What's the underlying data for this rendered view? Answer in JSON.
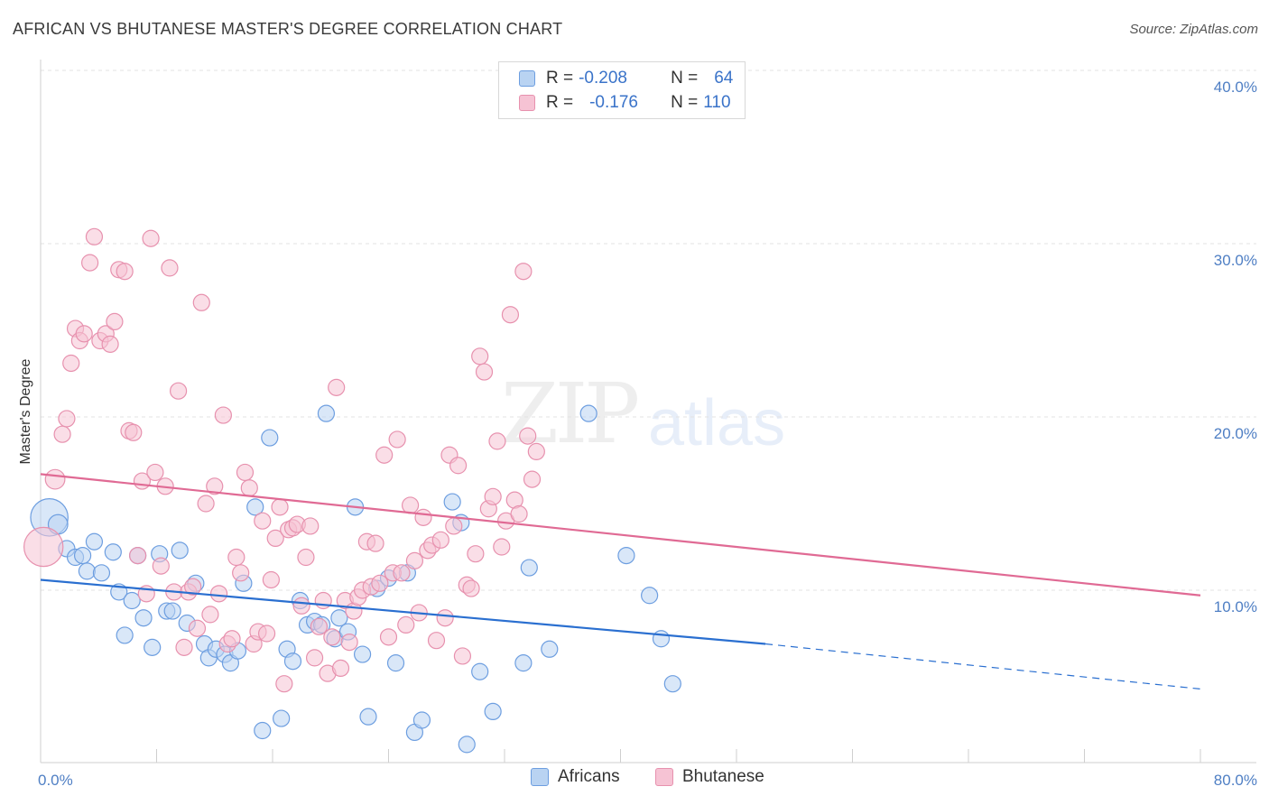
{
  "title": "AFRICAN VS BHUTANESE MASTER'S DEGREE CORRELATION CHART",
  "source": "Source: ZipAtlas.com",
  "watermark": {
    "zip": "ZIP",
    "atlas": "atlas"
  },
  "legend": {
    "rows": [
      {
        "r_label": "R =",
        "r_value": "-0.208",
        "n_label": "N =",
        "n_value": "64"
      },
      {
        "r_label": "R =",
        "r_value": "-0.176",
        "n_label": "N =",
        "n_value": "110"
      }
    ]
  },
  "colors": {
    "africans_fill": "#b9d3f2",
    "africans_stroke": "#6d9ee0",
    "africans_line": "#2a6fd0",
    "bhutanese_fill": "#f6c3d4",
    "bhutanese_stroke": "#e791ae",
    "bhutanese_line": "#e06a94",
    "grid": "#e3e3e3",
    "tick_text": "#4f7fc4"
  },
  "chart_data": {
    "type": "scatter",
    "title": "AFRICAN VS BHUTANESE MASTER'S DEGREE CORRELATION CHART",
    "xlabel": "",
    "ylabel": "Master's Degree",
    "xlim": [
      0,
      80
    ],
    "ylim": [
      0,
      40
    ],
    "x_tick_labels": [
      "0.0%",
      "80.0%"
    ],
    "y_ticks": [
      10,
      20,
      30,
      40
    ],
    "y_tick_labels": [
      "10.0%",
      "20.0%",
      "30.0%",
      "40.0%"
    ],
    "grid": true,
    "legend_position": "top-center",
    "series": [
      {
        "name": "Africans",
        "r": -0.208,
        "n": 64,
        "trend": {
          "x0": 0,
          "y0": 10.6,
          "x1": 50,
          "y1": 6.9,
          "dashed_to_x": 80,
          "dashed_to_y": 4.3
        },
        "points": [
          [
            0.6,
            14.2,
            2.3
          ],
          [
            1.2,
            13.8,
            1.2
          ],
          [
            1.8,
            12.4,
            1
          ],
          [
            2.4,
            11.9,
            1
          ],
          [
            2.9,
            12.0,
            1
          ],
          [
            3.2,
            11.1,
            1
          ],
          [
            3.7,
            12.8,
            1
          ],
          [
            4.2,
            11.0,
            1
          ],
          [
            5.0,
            12.2,
            1
          ],
          [
            5.4,
            9.9,
            1
          ],
          [
            5.8,
            7.4,
            1
          ],
          [
            6.3,
            9.4,
            1
          ],
          [
            6.7,
            12.0,
            1
          ],
          [
            7.1,
            8.4,
            1
          ],
          [
            7.7,
            6.7,
            1
          ],
          [
            8.2,
            12.1,
            1
          ],
          [
            8.7,
            8.8,
            1
          ],
          [
            9.1,
            8.8,
            1
          ],
          [
            9.6,
            12.3,
            1
          ],
          [
            10.1,
            8.1,
            1
          ],
          [
            10.7,
            10.4,
            1
          ],
          [
            11.3,
            6.9,
            1
          ],
          [
            11.6,
            6.1,
            1
          ],
          [
            12.1,
            6.6,
            1
          ],
          [
            12.7,
            6.3,
            1
          ],
          [
            13.1,
            5.8,
            1
          ],
          [
            13.6,
            6.5,
            1
          ],
          [
            14.0,
            10.4,
            1
          ],
          [
            14.8,
            14.8,
            1
          ],
          [
            15.3,
            1.9,
            1
          ],
          [
            15.8,
            18.8,
            1
          ],
          [
            16.6,
            2.6,
            1
          ],
          [
            17.0,
            6.6,
            1
          ],
          [
            17.4,
            5.9,
            1
          ],
          [
            17.9,
            9.4,
            1
          ],
          [
            18.4,
            8.0,
            1
          ],
          [
            18.9,
            8.2,
            1
          ],
          [
            19.4,
            8.0,
            1
          ],
          [
            19.7,
            20.2,
            1
          ],
          [
            20.3,
            7.2,
            1
          ],
          [
            20.6,
            8.4,
            1
          ],
          [
            21.2,
            7.6,
            1
          ],
          [
            21.7,
            14.8,
            1
          ],
          [
            22.2,
            6.3,
            1
          ],
          [
            22.6,
            2.7,
            1
          ],
          [
            23.2,
            10.1,
            1
          ],
          [
            24.0,
            10.7,
            1
          ],
          [
            24.5,
            5.8,
            1
          ],
          [
            25.3,
            11.0,
            1
          ],
          [
            25.8,
            1.8,
            1
          ],
          [
            26.3,
            2.5,
            1
          ],
          [
            28.4,
            15.1,
            1
          ],
          [
            29.0,
            13.9,
            1
          ],
          [
            29.4,
            1.1,
            1
          ],
          [
            30.3,
            5.3,
            1
          ],
          [
            31.2,
            3.0,
            1
          ],
          [
            33.3,
            5.8,
            1
          ],
          [
            33.7,
            11.3,
            1
          ],
          [
            35.1,
            6.6,
            1
          ],
          [
            37.8,
            20.2,
            1
          ],
          [
            40.4,
            12.0,
            1
          ],
          [
            42.0,
            9.7,
            1
          ],
          [
            42.8,
            7.2,
            1
          ],
          [
            43.6,
            4.6,
            1
          ]
        ]
      },
      {
        "name": "Bhutanese",
        "r": -0.176,
        "n": 110,
        "trend": {
          "x0": 0,
          "y0": 16.7,
          "x1": 80,
          "y1": 9.7
        },
        "points": [
          [
            0.2,
            12.5,
            2.4
          ],
          [
            1.0,
            16.4,
            1.2
          ],
          [
            1.5,
            19.0,
            1
          ],
          [
            1.8,
            19.9,
            1
          ],
          [
            2.1,
            23.1,
            1
          ],
          [
            2.4,
            25.1,
            1
          ],
          [
            2.7,
            24.4,
            1
          ],
          [
            3.0,
            24.8,
            1
          ],
          [
            3.4,
            28.9,
            1
          ],
          [
            3.7,
            30.4,
            1
          ],
          [
            4.1,
            24.4,
            1
          ],
          [
            4.5,
            24.8,
            1
          ],
          [
            4.8,
            24.2,
            1
          ],
          [
            5.1,
            25.5,
            1
          ],
          [
            5.4,
            28.5,
            1
          ],
          [
            5.8,
            28.4,
            1
          ],
          [
            6.1,
            19.2,
            1
          ],
          [
            6.4,
            19.1,
            1
          ],
          [
            6.7,
            12.0,
            1
          ],
          [
            7.0,
            16.3,
            1
          ],
          [
            7.3,
            9.8,
            1
          ],
          [
            7.6,
            30.3,
            1
          ],
          [
            7.9,
            16.8,
            1
          ],
          [
            8.3,
            11.4,
            1
          ],
          [
            8.6,
            16.0,
            1
          ],
          [
            8.9,
            28.6,
            1
          ],
          [
            9.2,
            9.9,
            1
          ],
          [
            9.5,
            21.5,
            1
          ],
          [
            9.9,
            6.7,
            1
          ],
          [
            10.2,
            9.9,
            1
          ],
          [
            10.5,
            10.2,
            1
          ],
          [
            10.8,
            7.8,
            1
          ],
          [
            11.1,
            26.6,
            1
          ],
          [
            11.4,
            15.0,
            1
          ],
          [
            11.7,
            8.6,
            1
          ],
          [
            12.0,
            16.0,
            1
          ],
          [
            12.3,
            9.8,
            1
          ],
          [
            12.6,
            20.1,
            1
          ],
          [
            12.9,
            6.9,
            1
          ],
          [
            13.2,
            7.2,
            1
          ],
          [
            13.5,
            11.9,
            1
          ],
          [
            13.8,
            11.0,
            1
          ],
          [
            14.1,
            16.8,
            1
          ],
          [
            14.4,
            15.9,
            1
          ],
          [
            14.7,
            6.9,
            1
          ],
          [
            15.0,
            7.6,
            1
          ],
          [
            15.3,
            14.0,
            1
          ],
          [
            15.6,
            7.5,
            1
          ],
          [
            15.9,
            10.6,
            1
          ],
          [
            16.2,
            13.0,
            1
          ],
          [
            16.5,
            14.8,
            1
          ],
          [
            16.8,
            4.6,
            1
          ],
          [
            17.1,
            13.5,
            1
          ],
          [
            17.4,
            13.6,
            1
          ],
          [
            17.7,
            13.8,
            1
          ],
          [
            18.0,
            9.1,
            1
          ],
          [
            18.3,
            11.9,
            1
          ],
          [
            18.6,
            13.7,
            1
          ],
          [
            18.9,
            6.1,
            1
          ],
          [
            19.2,
            7.9,
            1
          ],
          [
            19.5,
            9.4,
            1
          ],
          [
            19.8,
            5.2,
            1
          ],
          [
            20.1,
            7.3,
            1
          ],
          [
            20.4,
            21.7,
            1
          ],
          [
            20.7,
            5.5,
            1
          ],
          [
            21.0,
            9.4,
            1
          ],
          [
            21.3,
            7.0,
            1
          ],
          [
            21.6,
            8.8,
            1
          ],
          [
            21.9,
            9.6,
            1
          ],
          [
            22.2,
            10.0,
            1
          ],
          [
            22.5,
            12.8,
            1
          ],
          [
            22.8,
            10.2,
            1
          ],
          [
            23.1,
            12.7,
            1
          ],
          [
            23.4,
            10.4,
            1
          ],
          [
            23.7,
            17.8,
            1
          ],
          [
            24.0,
            7.3,
            1
          ],
          [
            24.3,
            11.0,
            1
          ],
          [
            24.6,
            18.7,
            1
          ],
          [
            24.9,
            11.0,
            1
          ],
          [
            25.2,
            8.0,
            1
          ],
          [
            25.5,
            14.9,
            1
          ],
          [
            25.8,
            11.7,
            1
          ],
          [
            26.1,
            8.7,
            1
          ],
          [
            26.4,
            14.2,
            1
          ],
          [
            26.7,
            12.3,
            1
          ],
          [
            27.0,
            12.6,
            1
          ],
          [
            27.3,
            7.1,
            1
          ],
          [
            27.6,
            12.9,
            1
          ],
          [
            27.9,
            8.4,
            1
          ],
          [
            28.2,
            17.8,
            1
          ],
          [
            28.5,
            13.7,
            1
          ],
          [
            28.8,
            17.2,
            1
          ],
          [
            29.1,
            6.2,
            1
          ],
          [
            29.4,
            10.3,
            1
          ],
          [
            29.7,
            10.1,
            1
          ],
          [
            30.0,
            12.1,
            1
          ],
          [
            30.3,
            23.5,
            1
          ],
          [
            30.6,
            22.6,
            1
          ],
          [
            30.9,
            14.7,
            1
          ],
          [
            31.2,
            15.4,
            1
          ],
          [
            31.5,
            18.6,
            1
          ],
          [
            31.8,
            12.5,
            1
          ],
          [
            32.1,
            14.0,
            1
          ],
          [
            32.4,
            25.9,
            1
          ],
          [
            32.7,
            15.2,
            1
          ],
          [
            33.0,
            14.4,
            1
          ],
          [
            33.3,
            28.4,
            1
          ],
          [
            33.6,
            18.9,
            1
          ],
          [
            33.9,
            16.4,
            1
          ],
          [
            34.2,
            18.0,
            1
          ]
        ]
      }
    ]
  },
  "bottom_legend": {
    "africans": "Africans",
    "bhutanese": "Bhutanese"
  }
}
